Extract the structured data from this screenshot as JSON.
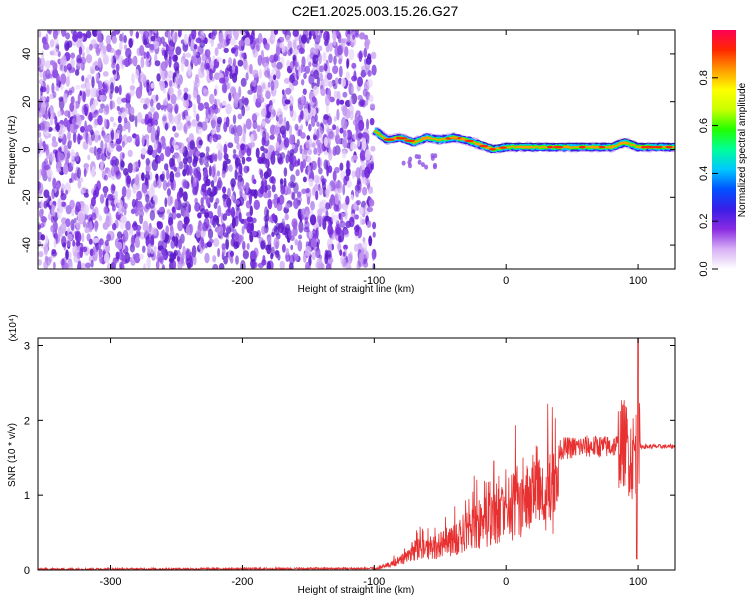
{
  "title": "C2E1.2025.003.15.26.G27",
  "chart_data": [
    {
      "type": "heatmap",
      "xlabel": "Height of straight line (km)",
      "ylabel": "Frequency (Hz)",
      "xlim": [
        -355,
        128
      ],
      "ylim": [
        -50,
        50
      ],
      "xticks": [
        -300,
        -200,
        -100,
        0,
        100
      ],
      "yticks": [
        -40,
        -20,
        0,
        20,
        40
      ],
      "colorbar": {
        "label": "Normalized spectral amplitude",
        "range": [
          0,
          1
        ],
        "ticks": [
          "0.0",
          "0.2",
          "0.4",
          "0.6",
          "0.8"
        ],
        "colors": [
          "#ffffff",
          "#d7b0f5",
          "#8a2be2",
          "#3a1ee8",
          "#0050ff",
          "#00c8ff",
          "#00ff9a",
          "#22ff00",
          "#c8ff00",
          "#ffff00",
          "#ff9a00",
          "#ff2800",
          "#ff0055"
        ]
      },
      "ridge": {
        "x": [
          -100,
          -95,
          -90,
          -80,
          -70,
          -60,
          -50,
          -40,
          -30,
          -20,
          -10,
          0,
          20,
          50,
          80,
          90,
          100,
          128
        ],
        "y": [
          8,
          6,
          4,
          5,
          3,
          5,
          4,
          5,
          4,
          2,
          0,
          1,
          1,
          1,
          1,
          3,
          1,
          1
        ]
      },
      "noise_region_x": [
        -355,
        -100
      ]
    },
    {
      "type": "line",
      "xlabel": "Height of straight line (km)",
      "ylabel": "SNR (10 * v/v)",
      "scale_note": "(x10⁴)",
      "xlim": [
        -355,
        128
      ],
      "ylim": [
        0,
        3.1
      ],
      "xticks": [
        -300,
        -200,
        -100,
        0,
        100
      ],
      "yticks": [
        0,
        1,
        2,
        3
      ],
      "color": "#e83030",
      "envelope": {
        "x": [
          -355,
          -100,
          -95,
          -80,
          -70,
          -60,
          -50,
          -40,
          -30,
          -20,
          -10,
          0,
          10,
          20,
          30,
          40,
          60,
          80,
          90,
          95,
          100,
          110,
          128
        ],
        "y": [
          0.01,
          0.02,
          0.05,
          0.2,
          0.4,
          0.45,
          0.5,
          0.6,
          0.8,
          0.9,
          1.1,
          1.25,
          1.35,
          1.45,
          1.55,
          1.62,
          1.65,
          1.65,
          1.7,
          1.5,
          1.65,
          1.65,
          1.65
        ]
      },
      "peak": {
        "x": 100,
        "y": 3.1
      },
      "dip": {
        "x": 99,
        "y": 0.15
      }
    }
  ]
}
